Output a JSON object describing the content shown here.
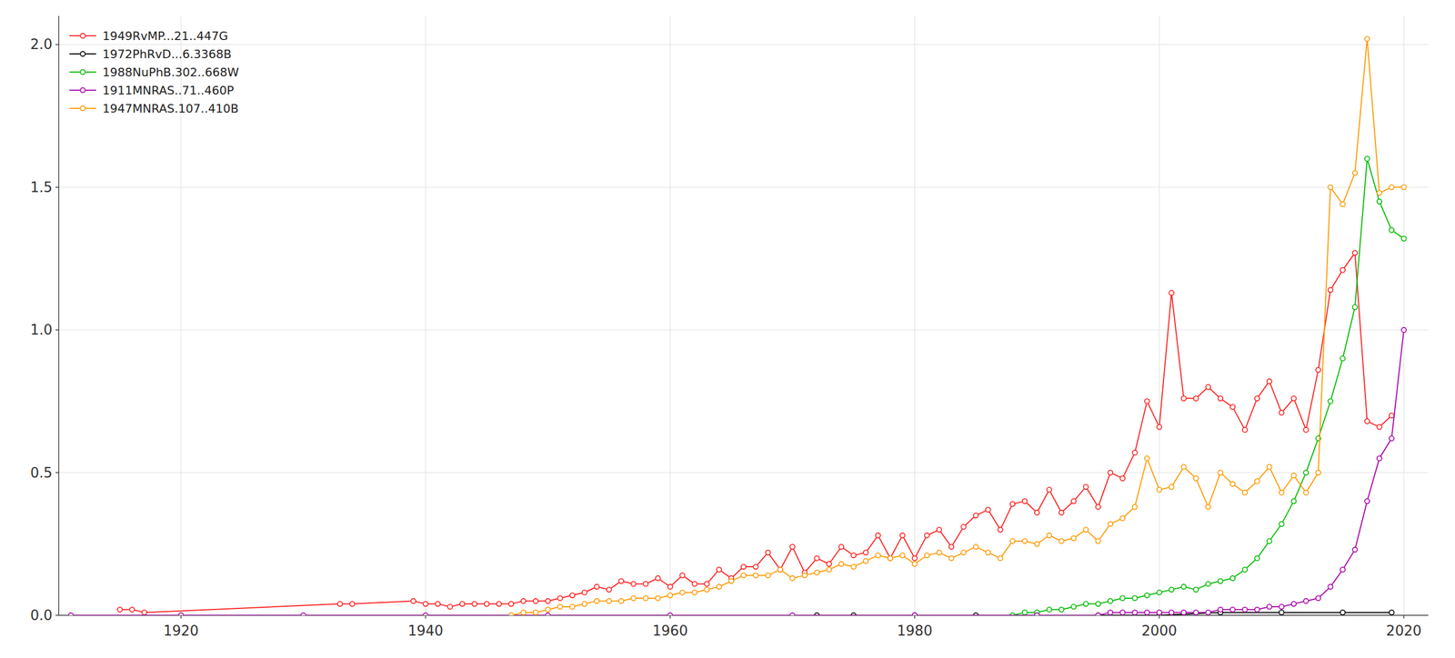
{
  "chart_data": {
    "type": "line",
    "marker": "circle",
    "legend": "upper left",
    "grid": true,
    "xlim": [
      1910,
      2022
    ],
    "ylim": [
      0,
      2.1
    ],
    "xticks": [
      1920,
      1940,
      1960,
      1980,
      2000,
      2020
    ],
    "yticks": [
      {
        "value": 0,
        "label": "0.0"
      },
      0.5,
      {
        "value": 1,
        "label": "1.0"
      },
      1.5,
      {
        "value": 2,
        "label": "2.0"
      }
    ],
    "series": [
      {
        "name": "1949RvMP...21..447G",
        "color": "#ff2020",
        "x": [
          1915,
          1916,
          1917,
          1933,
          1934,
          1939,
          1940,
          1941,
          1942,
          1943,
          1944,
          1945,
          1946,
          1947,
          1948,
          1949,
          1950,
          1951,
          1952,
          1953,
          1954,
          1955,
          1956,
          1957,
          1958,
          1959,
          1960,
          1961,
          1962,
          1963,
          1964,
          1965,
          1966,
          1967,
          1968,
          1969,
          1970,
          1971,
          1972,
          1973,
          1974,
          1975,
          1976,
          1977,
          1978,
          1979,
          1980,
          1981,
          1982,
          1983,
          1984,
          1985,
          1986,
          1987,
          1988,
          1989,
          1990,
          1991,
          1992,
          1993,
          1994,
          1995,
          1996,
          1997,
          1998,
          1999,
          2000,
          2001,
          2002,
          2003,
          2004,
          2005,
          2006,
          2007,
          2008,
          2009,
          2010,
          2011,
          2012,
          2013,
          2014,
          2015,
          2016,
          2017,
          2018,
          2019
        ],
        "values": [
          0.02,
          0.02,
          0.01,
          0.04,
          0.04,
          0.05,
          0.04,
          0.04,
          0.03,
          0.04,
          0.04,
          0.04,
          0.04,
          0.04,
          0.05,
          0.05,
          0.05,
          0.06,
          0.07,
          0.08,
          0.1,
          0.09,
          0.12,
          0.11,
          0.11,
          0.13,
          0.1,
          0.14,
          0.11,
          0.11,
          0.16,
          0.13,
          0.17,
          0.17,
          0.22,
          0.16,
          0.24,
          0.15,
          0.2,
          0.18,
          0.24,
          0.21,
          0.22,
          0.28,
          0.2,
          0.28,
          0.2,
          0.28,
          0.3,
          0.24,
          0.31,
          0.35,
          0.37,
          0.3,
          0.39,
          0.4,
          0.36,
          0.44,
          0.36,
          0.4,
          0.45,
          0.38,
          0.5,
          0.48,
          0.57,
          0.75,
          0.66,
          1.13,
          0.76,
          0.76,
          0.8,
          0.76,
          0.73,
          0.65,
          0.76,
          0.82,
          0.71,
          0.76,
          0.65,
          0.86,
          1.14,
          1.21,
          1.27,
          0.68,
          0.66,
          0.7
        ]
      },
      {
        "name": "1972PhRvD...6.3368B",
        "color": "#000000",
        "x": [
          1972,
          1975,
          1980,
          1985,
          1990,
          1995,
          2000,
          2005,
          2010,
          2015,
          2019
        ],
        "values": [
          0,
          0,
          0,
          0,
          0,
          0,
          0,
          0.01,
          0.01,
          0.01,
          0.01
        ]
      },
      {
        "name": "1988NuPhB.302..668W",
        "color": "#00bb00",
        "x": [
          1988,
          1989,
          1990,
          1991,
          1992,
          1993,
          1994,
          1995,
          1996,
          1997,
          1998,
          1999,
          2000,
          2001,
          2002,
          2003,
          2004,
          2005,
          2006,
          2007,
          2008,
          2009,
          2010,
          2011,
          2012,
          2013,
          2014,
          2015,
          2016,
          2017,
          2018,
          2019,
          2020
        ],
        "values": [
          0,
          0.01,
          0.01,
          0.02,
          0.02,
          0.03,
          0.04,
          0.04,
          0.05,
          0.06,
          0.06,
          0.07,
          0.08,
          0.09,
          0.1,
          0.09,
          0.11,
          0.12,
          0.13,
          0.16,
          0.2,
          0.26,
          0.32,
          0.4,
          0.5,
          0.62,
          0.75,
          0.9,
          1.08,
          1.6,
          1.45,
          1.35,
          1.32
        ]
      },
      {
        "name": "1911MNRAS..71..460P",
        "color": "#aa00aa",
        "x": [
          1911,
          1920,
          1930,
          1940,
          1950,
          1960,
          1970,
          1980,
          1990,
          1995,
          1996,
          1997,
          1998,
          1999,
          2000,
          2001,
          2002,
          2003,
          2004,
          2005,
          2006,
          2007,
          2008,
          2009,
          2010,
          2011,
          2012,
          2013,
          2014,
          2015,
          2016,
          2017,
          2018,
          2019,
          2020
        ],
        "values": [
          0,
          0,
          0,
          0,
          0,
          0,
          0,
          0,
          0,
          0,
          0.01,
          0.01,
          0.01,
          0.01,
          0.01,
          0.01,
          0.01,
          0.01,
          0.01,
          0.02,
          0.02,
          0.02,
          0.02,
          0.03,
          0.03,
          0.04,
          0.05,
          0.06,
          0.1,
          0.16,
          0.23,
          0.4,
          0.55,
          0.62,
          1.0
        ]
      },
      {
        "name": "1947MNRAS.107..410B",
        "color": "#ff9900",
        "x": [
          1947,
          1948,
          1949,
          1950,
          1951,
          1952,
          1953,
          1954,
          1955,
          1956,
          1957,
          1958,
          1959,
          1960,
          1961,
          1962,
          1963,
          1964,
          1965,
          1966,
          1967,
          1968,
          1969,
          1970,
          1971,
          1972,
          1973,
          1974,
          1975,
          1976,
          1977,
          1978,
          1979,
          1980,
          1981,
          1982,
          1983,
          1984,
          1985,
          1986,
          1987,
          1988,
          1989,
          1990,
          1991,
          1992,
          1993,
          1994,
          1995,
          1996,
          1997,
          1998,
          1999,
          2000,
          2001,
          2002,
          2003,
          2004,
          2005,
          2006,
          2007,
          2008,
          2009,
          2010,
          2011,
          2012,
          2013,
          2014,
          2015,
          2016,
          2017,
          2018,
          2019,
          2020
        ],
        "values": [
          0,
          0.01,
          0.01,
          0.02,
          0.03,
          0.03,
          0.04,
          0.05,
          0.05,
          0.05,
          0.06,
          0.06,
          0.06,
          0.07,
          0.08,
          0.08,
          0.09,
          0.1,
          0.12,
          0.14,
          0.14,
          0.14,
          0.16,
          0.13,
          0.14,
          0.15,
          0.16,
          0.18,
          0.17,
          0.19,
          0.21,
          0.2,
          0.21,
          0.18,
          0.21,
          0.22,
          0.2,
          0.22,
          0.24,
          0.22,
          0.2,
          0.26,
          0.26,
          0.25,
          0.28,
          0.26,
          0.27,
          0.3,
          0.26,
          0.32,
          0.34,
          0.38,
          0.55,
          0.44,
          0.45,
          0.52,
          0.48,
          0.38,
          0.5,
          0.46,
          0.43,
          0.47,
          0.52,
          0.43,
          0.49,
          0.43,
          0.5,
          1.5,
          1.44,
          1.55,
          2.02,
          1.48,
          1.5,
          1.5
        ]
      }
    ]
  }
}
